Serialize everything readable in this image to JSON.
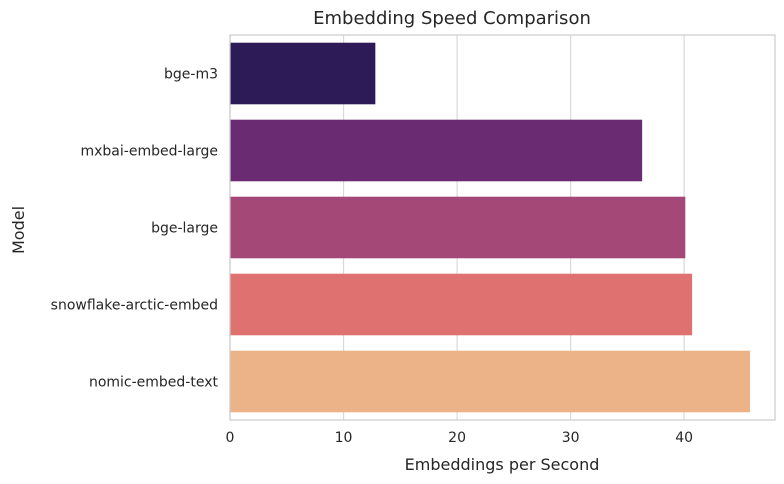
{
  "chart_data": {
    "type": "bar",
    "orientation": "horizontal",
    "title": "Embedding Speed Comparison",
    "xlabel": "Embeddings per Second",
    "ylabel": "Model",
    "categories": [
      "bge-m3",
      "mxbai-embed-large",
      "bge-large",
      "snowflake-arctic-embed",
      "nomic-embed-text"
    ],
    "values": [
      12.8,
      36.3,
      40.1,
      40.7,
      45.8
    ],
    "colors": [
      "#2d1b57",
      "#6b2b73",
      "#a44877",
      "#df7271",
      "#edb388"
    ],
    "xlim": [
      0,
      48
    ],
    "xticks": [
      0,
      10,
      20,
      30,
      40
    ],
    "grid": true,
    "style": {
      "background": "#ffffff",
      "grid_color": "#d9d9d9",
      "spine_color": "#cccccc",
      "text_color": "#262626"
    }
  }
}
